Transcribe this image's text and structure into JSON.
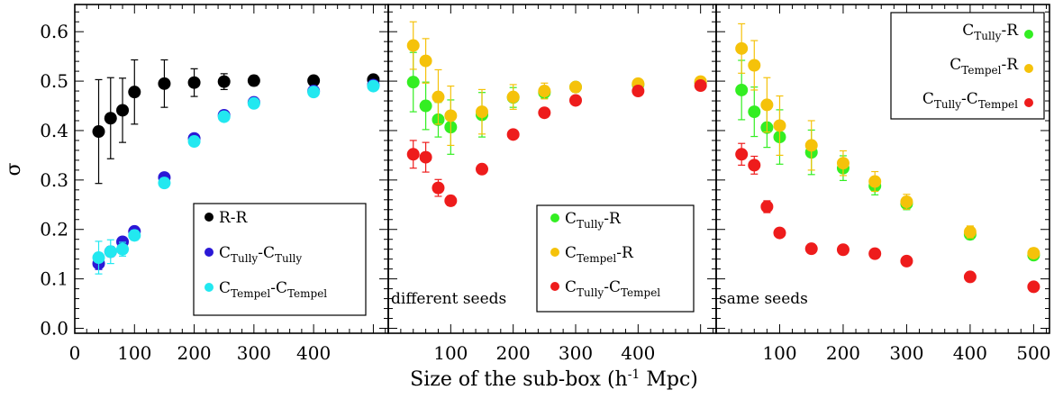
{
  "chart_data": {
    "type": "scatter",
    "xlabel": "Size of the sub-box (h",
    "xlabel_sup": "-1",
    "xlabel_tail": " Mpc)",
    "ylabel": "σ",
    "xlim": [
      0,
      525
    ],
    "ylim": [
      -0.01,
      0.655
    ],
    "y_ticks": [
      "0.0",
      "0.1",
      "0.2",
      "0.3",
      "0.4",
      "0.5",
      "0.6"
    ],
    "y_tick_values": [
      0.0,
      0.1,
      0.2,
      0.3,
      0.4,
      0.5,
      0.6
    ],
    "x_ticks_panel1": [
      "0",
      "100",
      "200",
      "300",
      "400"
    ],
    "x_ticks_panel2": [
      "100",
      "200",
      "300",
      "400"
    ],
    "x_ticks_panel3": [
      "100",
      "200",
      "300",
      "400",
      "500"
    ],
    "x_tick_values_panel1": [
      0,
      100,
      200,
      300,
      400
    ],
    "x_tick_values_panel2": [
      100,
      200,
      300,
      400
    ],
    "x_tick_values_panel3": [
      100,
      200,
      300,
      400,
      500
    ],
    "colors": {
      "black": "#000000",
      "blue": "#2b18d6",
      "cyan": "#22e8f0",
      "green": "#33ee22",
      "gold": "#f5c20a",
      "red": "#ee1c1c"
    },
    "panels": [
      {
        "note": "",
        "legend_position": "bottom-right",
        "series": [
          {
            "legend": "R-R",
            "color": "black",
            "x": [
              40,
              60,
              80,
              100,
              150,
              200,
              250,
              300,
              400,
              500
            ],
            "y": [
              0.398,
              0.425,
              0.441,
              0.478,
              0.495,
              0.497,
              0.499,
              0.501,
              0.501,
              0.503
            ],
            "err": [
              0.105,
              0.082,
              0.065,
              0.065,
              0.048,
              0.028,
              0.016,
              0.01,
              0.008,
              0.008
            ]
          },
          {
            "legend": "C",
            "legend_sub1": "Tully",
            "legend_mid": "-C",
            "legend_sub2": "Tully",
            "color": "blue",
            "x": [
              40,
              60,
              80,
              100,
              150,
              200,
              250,
              300,
              400,
              500
            ],
            "y": [
              0.131,
              0.155,
              0.175,
              0.196,
              0.305,
              0.384,
              0.431,
              0.457,
              0.48,
              0.492
            ],
            "err": [
              0.012,
              0.01,
              0.009,
              0.008,
              0.008,
              0.007,
              0.006,
              0.005,
              0.004,
              0.004
            ]
          },
          {
            "legend": "C",
            "legend_sub1": "Tempel",
            "legend_mid": "-C",
            "legend_sub2": "Tempel",
            "color": "cyan",
            "x": [
              40,
              60,
              80,
              100,
              150,
              200,
              250,
              300,
              400,
              500
            ],
            "y": [
              0.143,
              0.155,
              0.16,
              0.188,
              0.294,
              0.378,
              0.428,
              0.455,
              0.478,
              0.49
            ],
            "err": [
              0.033,
              0.024,
              0.014,
              0.01,
              0.008,
              0.007,
              0.006,
              0.005,
              0.004,
              0.004
            ]
          }
        ]
      },
      {
        "note": "different seeds",
        "legend_position": "bottom-right",
        "series": [
          {
            "legend": "C",
            "legend_sub1": "Tully",
            "legend_mid": "-R",
            "legend_sub2": "",
            "color": "green",
            "x": [
              40,
              60,
              80,
              100,
              150,
              200,
              250,
              300,
              400,
              500
            ],
            "y": [
              0.498,
              0.45,
              0.422,
              0.407,
              0.432,
              0.467,
              0.477,
              0.488,
              0.493,
              0.497
            ],
            "err": [
              0.06,
              0.048,
              0.035,
              0.055,
              0.045,
              0.02,
              0.012,
              0.008,
              0.006,
              0.005
            ]
          },
          {
            "legend": "C",
            "legend_sub1": "Tempel",
            "legend_mid": "-R",
            "legend_sub2": "",
            "color": "gold",
            "x": [
              40,
              60,
              80,
              100,
              150,
              200,
              250,
              300,
              400,
              500
            ],
            "y": [
              0.572,
              0.541,
              0.468,
              0.43,
              0.438,
              0.468,
              0.48,
              0.488,
              0.495,
              0.499
            ],
            "err": [
              0.048,
              0.045,
              0.055,
              0.06,
              0.045,
              0.025,
              0.016,
              0.01,
              0.007,
              0.006
            ]
          },
          {
            "legend": "C",
            "legend_sub1": "Tully",
            "legend_mid": "-C",
            "legend_sub2": "Tempel",
            "color": "red",
            "x": [
              40,
              60,
              80,
              100,
              150,
              200,
              250,
              300,
              400,
              500
            ],
            "y": [
              0.352,
              0.346,
              0.284,
              0.258,
              0.322,
              0.392,
              0.436,
              0.461,
              0.48,
              0.491
            ],
            "err": [
              0.028,
              0.03,
              0.017,
              0.01,
              0.008,
              0.006,
              0.005,
              0.004,
              0.004,
              0.003
            ]
          }
        ]
      },
      {
        "note": "same seeds",
        "legend_position": "top-right",
        "series": [
          {
            "legend": "C",
            "legend_sub1": "Tully",
            "legend_mid": "-R",
            "legend_sub2": "",
            "color": "green",
            "x": [
              40,
              60,
              80,
              100,
              150,
              200,
              250,
              300,
              400,
              500
            ],
            "y": [
              0.482,
              0.438,
              0.406,
              0.387,
              0.356,
              0.324,
              0.288,
              0.252,
              0.19,
              0.148
            ],
            "err": [
              0.06,
              0.05,
              0.04,
              0.055,
              0.045,
              0.025,
              0.018,
              0.012,
              0.01,
              0.008
            ]
          },
          {
            "legend": "C",
            "legend_sub1": "Tempel",
            "legend_mid": "-R",
            "legend_sub2": "",
            "color": "gold",
            "x": [
              40,
              60,
              80,
              100,
              150,
              200,
              250,
              300,
              400,
              500
            ],
            "y": [
              0.566,
              0.532,
              0.452,
              0.41,
              0.37,
              0.334,
              0.297,
              0.256,
              0.195,
              0.152
            ],
            "err": [
              0.05,
              0.05,
              0.055,
              0.06,
              0.05,
              0.025,
              0.02,
              0.015,
              0.012,
              0.01
            ]
          },
          {
            "legend": "C",
            "legend_sub1": "Tully",
            "legend_mid": "-C",
            "legend_sub2": "Tempel",
            "color": "red",
            "x": [
              40,
              60,
              80,
              100,
              150,
              200,
              250,
              300,
              400,
              500
            ],
            "y": [
              0.352,
              0.33,
              0.246,
              0.193,
              0.161,
              0.159,
              0.151,
              0.136,
              0.104,
              0.084
            ],
            "err": [
              0.022,
              0.018,
              0.012,
              0.006,
              0.005,
              0.005,
              0.004,
              0.004,
              0.003,
              0.003
            ]
          }
        ]
      }
    ]
  }
}
